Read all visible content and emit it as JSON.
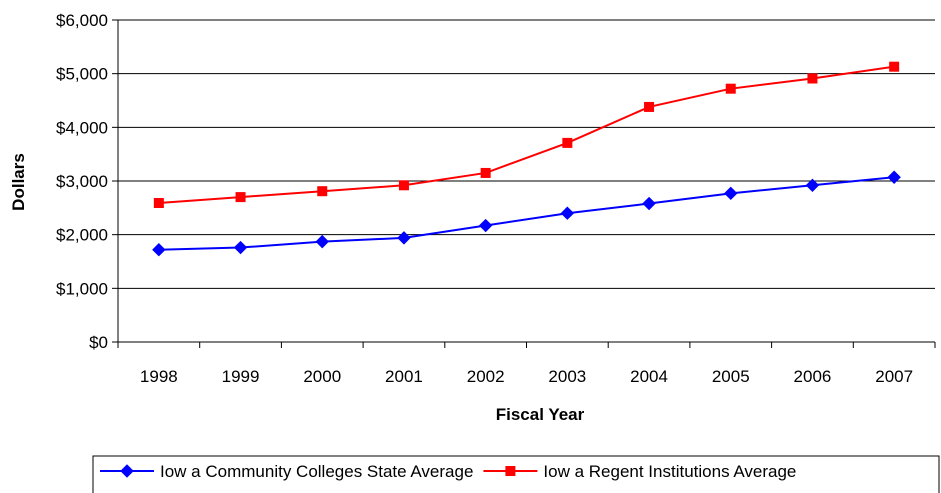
{
  "chart_data": {
    "type": "line",
    "categories": [
      "1998",
      "1999",
      "2000",
      "2001",
      "2002",
      "2003",
      "2004",
      "2005",
      "2006",
      "2007"
    ],
    "series": [
      {
        "name": "Iow a Community Colleges State Average",
        "color": "#0000FF",
        "marker": "diamond",
        "values": [
          1720,
          1760,
          1870,
          1940,
          2170,
          2400,
          2580,
          2770,
          2920,
          3070
        ]
      },
      {
        "name": "Iow a Regent Institutions Average",
        "color": "#FF0000",
        "marker": "square",
        "values": [
          2590,
          2700,
          2810,
          2920,
          3150,
          3710,
          4380,
          4720,
          4910,
          5130
        ]
      }
    ],
    "y_ticks": [
      "$0",
      "$1,000",
      "$2,000",
      "$3,000",
      "$4,000",
      "$5,000",
      "$6,000"
    ],
    "ylim": [
      0,
      6000
    ],
    "xlabel": "Fiscal Year",
    "ylabel": "Dollars",
    "grid": true,
    "legend_position": "bottom"
  }
}
